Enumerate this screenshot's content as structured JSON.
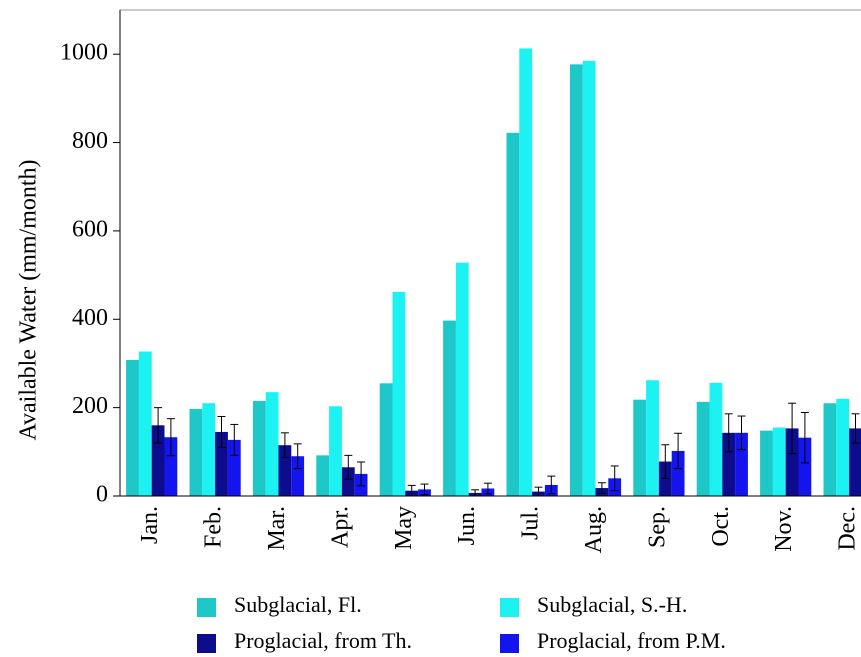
{
  "chart_data": {
    "type": "bar",
    "y_label": "Available Water (mm/month)",
    "categories": [
      "Jan.",
      "Feb.",
      "Mar.",
      "Apr.",
      "May",
      "Jun.",
      "Jul.",
      "Aug.",
      "Sep.",
      "Oct.",
      "Nov.",
      "Dec."
    ],
    "series": [
      {
        "name": "Subglacial, Fl.",
        "color": "#1ec8c8",
        "values": [
          308,
          197,
          215,
          92,
          255,
          397,
          822,
          977,
          218,
          213,
          148,
          210
        ]
      },
      {
        "name": "Subglacial, S.-H.",
        "color": "#1cf2f2",
        "values": [
          327,
          210,
          235,
          203,
          462,
          528,
          1013,
          985,
          262,
          256,
          155,
          220
        ]
      },
      {
        "name": "Proglacial, from Th.",
        "color": "#0c0c8c",
        "values": [
          160,
          145,
          115,
          65,
          12,
          7,
          10,
          18,
          78,
          143,
          153,
          153
        ],
        "errors": [
          40,
          35,
          28,
          27,
          12,
          7,
          10,
          12,
          38,
          43,
          57,
          33
        ]
      },
      {
        "name": "Proglacial, from P.M.",
        "color": "#1414ee",
        "values": [
          133,
          127,
          90,
          50,
          15,
          17,
          25,
          40,
          102,
          143,
          132,
          123
        ],
        "errors": [
          42,
          35,
          28,
          27,
          12,
          12,
          20,
          28,
          40,
          38,
          57,
          38
        ]
      }
    ],
    "ylim": [
      0,
      1100
    ],
    "yticks": [
      0,
      200,
      400,
      600,
      800,
      1000
    ]
  }
}
